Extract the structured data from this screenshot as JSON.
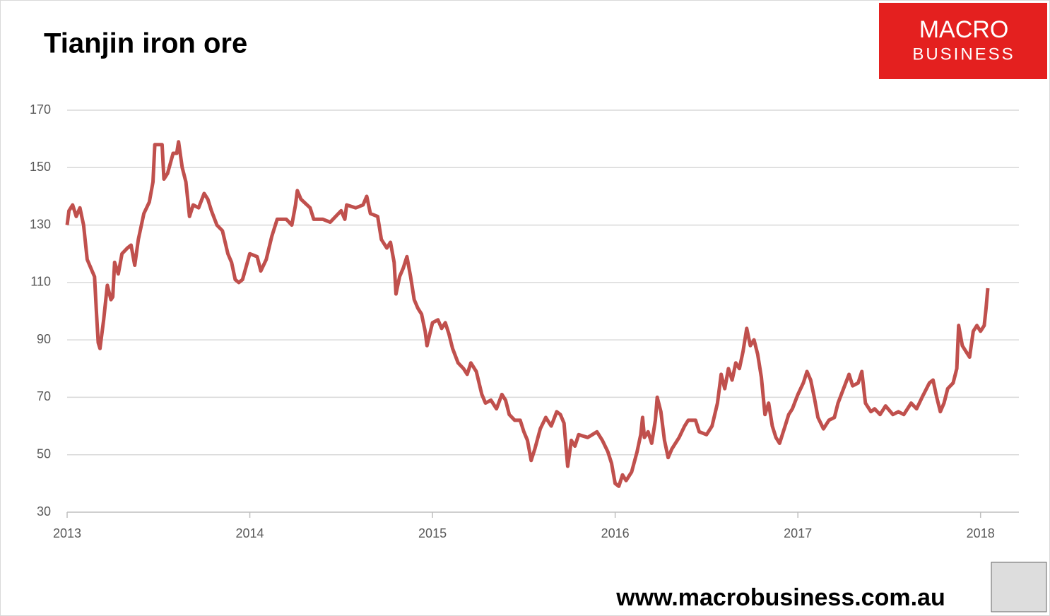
{
  "chart_data": {
    "type": "line",
    "title": "Tianjin iron ore",
    "logo": {
      "line1": "MACRO",
      "line2": "BUSINESS"
    },
    "footer": "www.macrobusiness.com.au",
    "xlim": [
      2013,
      2018.21
    ],
    "xticks": [
      2013,
      2014,
      2015,
      2016,
      2017,
      2018
    ],
    "ylim": [
      30,
      170
    ],
    "yticks": [
      30,
      50,
      70,
      90,
      110,
      130,
      150,
      170
    ],
    "grid": true,
    "x": [
      2013.0,
      2013.01,
      2013.03,
      2013.05,
      2013.07,
      2013.09,
      2013.11,
      2013.13,
      2013.15,
      2013.16,
      2013.17,
      2013.18,
      2013.2,
      2013.22,
      2013.24,
      2013.25,
      2013.26,
      2013.28,
      2013.3,
      2013.33,
      2013.35,
      2013.37,
      2013.39,
      2013.42,
      2013.45,
      2013.47,
      2013.48,
      2013.5,
      2013.52,
      2013.53,
      2013.55,
      2013.58,
      2013.6,
      2013.61,
      2013.63,
      2013.65,
      2013.67,
      2013.69,
      2013.72,
      2013.75,
      2013.77,
      2013.79,
      2013.82,
      2013.85,
      2013.88,
      2013.9,
      2013.92,
      2013.94,
      2013.96,
      2014.0,
      2014.04,
      2014.06,
      2014.09,
      2014.12,
      2014.15,
      2014.2,
      2014.23,
      2014.25,
      2014.26,
      2014.28,
      2014.33,
      2014.35,
      2014.4,
      2014.44,
      2014.5,
      2014.52,
      2014.53,
      2014.58,
      2014.62,
      2014.64,
      2014.66,
      2014.7,
      2014.72,
      2014.75,
      2014.77,
      2014.79,
      2014.8,
      2014.82,
      2014.84,
      2014.86,
      2014.88,
      2014.9,
      2014.92,
      2014.94,
      2014.96,
      2014.97,
      2015.0,
      2015.03,
      2015.05,
      2015.07,
      2015.09,
      2015.11,
      2015.14,
      2015.17,
      2015.19,
      2015.21,
      2015.24,
      2015.27,
      2015.29,
      2015.32,
      2015.35,
      2015.38,
      2015.4,
      2015.42,
      2015.45,
      2015.48,
      2015.5,
      2015.52,
      2015.54,
      2015.56,
      2015.59,
      2015.62,
      2015.65,
      2015.68,
      2015.7,
      2015.72,
      2015.74,
      2015.76,
      2015.78,
      2015.8,
      2015.85,
      2015.9,
      2015.93,
      2015.96,
      2015.98,
      2016.0,
      2016.02,
      2016.04,
      2016.06,
      2016.09,
      2016.12,
      2016.14,
      2016.15,
      2016.16,
      2016.18,
      2016.2,
      2016.22,
      2016.23,
      2016.25,
      2016.27,
      2016.29,
      2016.31,
      2016.35,
      2016.38,
      2016.4,
      2016.44,
      2016.46,
      2016.5,
      2016.53,
      2016.56,
      2016.58,
      2016.6,
      2016.62,
      2016.64,
      2016.66,
      2016.68,
      2016.7,
      2016.72,
      2016.74,
      2016.76,
      2016.78,
      2016.8,
      2016.82,
      2016.84,
      2016.86,
      2016.88,
      2016.9,
      2016.93,
      2016.95,
      2016.97,
      2017.0,
      2017.03,
      2017.05,
      2017.07,
      2017.09,
      2017.11,
      2017.14,
      2017.17,
      2017.2,
      2017.22,
      2017.25,
      2017.28,
      2017.3,
      2017.33,
      2017.35,
      2017.37,
      2017.4,
      2017.42,
      2017.45,
      2017.48,
      2017.52,
      2017.55,
      2017.58,
      2017.62,
      2017.65,
      2017.68,
      2017.72,
      2017.74,
      2017.76,
      2017.78,
      2017.8,
      2017.82,
      2017.85,
      2017.87,
      2017.88,
      2017.9,
      2017.92,
      2017.94,
      2017.96,
      2017.98,
      2018.0,
      2018.02,
      2018.03,
      2018.04
    ],
    "series": [
      {
        "color": "#c0504d",
        "values": [
          130,
          135,
          137,
          133,
          136,
          130,
          118,
          115,
          112,
          100,
          89,
          87,
          97,
          109,
          104,
          105,
          117,
          113,
          120,
          122,
          123,
          116,
          125,
          134,
          138,
          145,
          158,
          158,
          158,
          146,
          148,
          155,
          155,
          159,
          150,
          145,
          133,
          137,
          136,
          141,
          139,
          135,
          130,
          128,
          120,
          117,
          111,
          110,
          111,
          120,
          119,
          114,
          118,
          126,
          132,
          132,
          130,
          137,
          142,
          139,
          136,
          132,
          132,
          131,
          135,
          132,
          137,
          136,
          137,
          140,
          134,
          133,
          125,
          122,
          124,
          117,
          106,
          112,
          115,
          119,
          112,
          104,
          101,
          99,
          93,
          88,
          96,
          97,
          94,
          96,
          92,
          87,
          82,
          80,
          78,
          82,
          79,
          71,
          68,
          69,
          66,
          71,
          69,
          64,
          62,
          62,
          58,
          55,
          48,
          52,
          59,
          63,
          60,
          65,
          64,
          61,
          46,
          55,
          53,
          57,
          56,
          58,
          55,
          51,
          47,
          40,
          39,
          43,
          41,
          44,
          51,
          57,
          63,
          56,
          58,
          54,
          62,
          70,
          65,
          55,
          49,
          52,
          56,
          60,
          62,
          62,
          58,
          57,
          60,
          68,
          78,
          73,
          80,
          76,
          82,
          80,
          86,
          94,
          88,
          90,
          85,
          77,
          64,
          68,
          60,
          56,
          54,
          60,
          64,
          66,
          71,
          75,
          79,
          76,
          70,
          63,
          59,
          62,
          63,
          68,
          73,
          78,
          74,
          75,
          79,
          68,
          65,
          66,
          64,
          67,
          64,
          65,
          64,
          68,
          66,
          70,
          75,
          76,
          70,
          65,
          68,
          73,
          75,
          80,
          95,
          88,
          86,
          84,
          93,
          95,
          93,
          95,
          101,
          108
        ]
      }
    ]
  }
}
